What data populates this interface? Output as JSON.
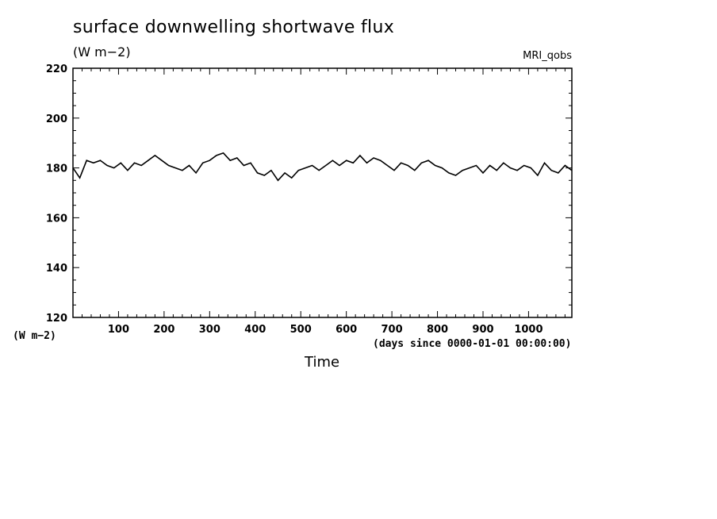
{
  "chart_data": {
    "type": "line",
    "title": "surface downwelling shortwave flux",
    "units": "(W m−2)",
    "source_label": "MRI_qobs",
    "y_unit_label": "(W m−2)",
    "x_unit_label": "(days since 0000-01-01 00:00:00)",
    "xlabel": "Time",
    "ylabel": "",
    "xlim": [
      0,
      1095
    ],
    "ylim": [
      120,
      220
    ],
    "x_ticks": [
      100,
      200,
      300,
      400,
      500,
      600,
      700,
      800,
      900,
      1000
    ],
    "y_ticks": [
      120,
      140,
      160,
      180,
      200,
      220
    ],
    "grid": false,
    "line_color": "#000000",
    "series": [
      {
        "x": [
          0,
          15,
          30,
          45,
          60,
          75,
          90,
          105,
          120,
          135,
          150,
          165,
          180,
          195,
          210,
          225,
          240,
          255,
          270,
          285,
          300,
          315,
          330,
          345,
          360,
          375,
          390,
          405,
          420,
          435,
          450,
          465,
          480,
          495,
          510,
          525,
          540,
          555,
          570,
          585,
          600,
          615,
          630,
          645,
          660,
          675,
          690,
          705,
          720,
          735,
          750,
          765,
          780,
          795,
          810,
          825,
          840,
          855,
          870,
          885,
          900,
          915,
          930,
          945,
          960,
          975,
          990,
          1005,
          1020,
          1035,
          1050,
          1065,
          1080,
          1095
        ],
        "values": [
          180,
          176,
          183,
          182,
          183,
          181,
          180,
          182,
          179,
          182,
          181,
          183,
          185,
          183,
          181,
          180,
          179,
          181,
          178,
          182,
          183,
          185,
          186,
          183,
          184,
          181,
          182,
          178,
          177,
          179,
          175,
          178,
          176,
          179,
          180,
          181,
          179,
          181,
          183,
          181,
          183,
          182,
          185,
          182,
          184,
          183,
          181,
          179,
          182,
          181,
          179,
          182,
          183,
          181,
          180,
          178,
          177,
          179,
          180,
          181,
          178,
          181,
          179,
          182,
          180,
          179,
          181,
          180,
          177,
          182,
          179,
          178,
          181,
          179
        ]
      }
    ]
  }
}
